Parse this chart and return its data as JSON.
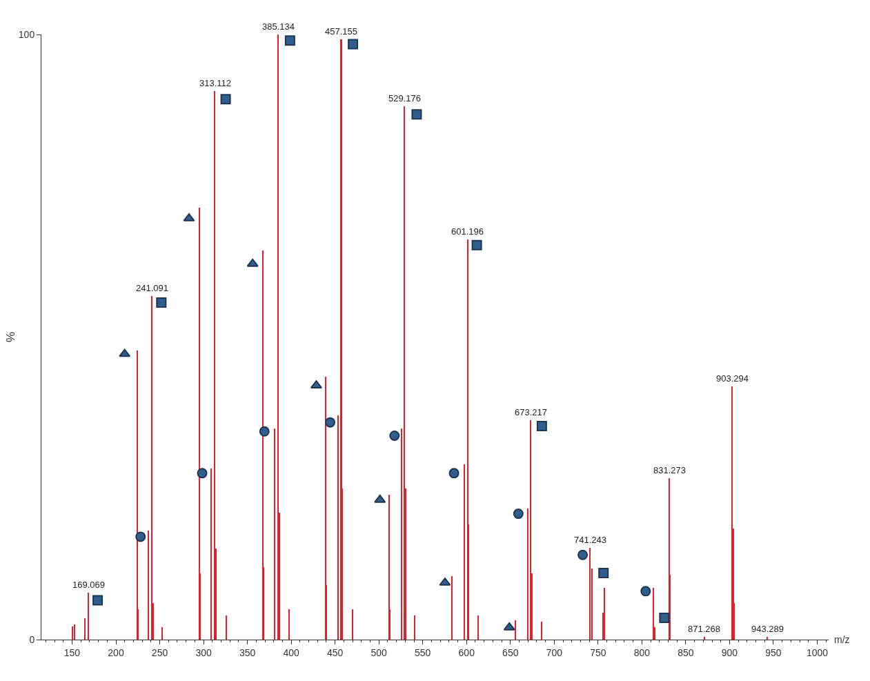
{
  "chart_data": {
    "type": "bar",
    "xlabel": "m/z",
    "ylabel": "%",
    "x": [
      150.5,
      153,
      165,
      169.069,
      224.5,
      225.5,
      237,
      241.091,
      242.5,
      253,
      295.5,
      296.5,
      308.5,
      313.112,
      314.5,
      326,
      367.5,
      368.5,
      381.5,
      385.134,
      386.5,
      398,
      439.5,
      440.5,
      453.5,
      457.155,
      458.5,
      470,
      511.5,
      512.5,
      526,
      529.176,
      530.5,
      541,
      583.5,
      597.5,
      601.196,
      602.5,
      613,
      655.5,
      670,
      673.217,
      674.5,
      686,
      741.243,
      743,
      755.5,
      757.5,
      813.5,
      815,
      831.273,
      832.5,
      871.268,
      903.294,
      904.5,
      905.5,
      943.289
    ],
    "series": [
      {
        "color": "#e0202a",
        "values": [
          2.2,
          2.5,
          3.5,
          7.8,
          47.8,
          5,
          18,
          56.8,
          6,
          2,
          71.4,
          11,
          28.3,
          90.6,
          15,
          4,
          64.3,
          12,
          34.9,
          100,
          21,
          5,
          43.5,
          9,
          37.1,
          99.2,
          25,
          5,
          24,
          5,
          34.9,
          88.1,
          25,
          4,
          10.5,
          29,
          66.1,
          19,
          4,
          3.2,
          21.7,
          36.3,
          11,
          3,
          15.2,
          11.8,
          4.5,
          8.6,
          8.6,
          2,
          26.7,
          10.7,
          0.5,
          41.8,
          18.4,
          6,
          0.5
        ]
      },
      {
        "type": "scatter",
        "marker": "triangle",
        "color": "#2f5f8f",
        "x": [
          210,
          283.4,
          356,
          428.6,
          501.2,
          575.4,
          648.8
        ],
        "values": [
          47.2,
          69.6,
          62.1,
          42,
          23.1,
          9.4,
          2.0
        ]
      },
      {
        "type": "scatter",
        "marker": "circle",
        "color": "#2f5f8f",
        "x": [
          228.1,
          298.4,
          369.4,
          444.4,
          517.8,
          585.7,
          659.1,
          732.5,
          804.3
        ],
        "values": [
          17.0,
          27.5,
          34.4,
          35.9,
          33.7,
          27.5,
          20.8,
          14.0,
          8.0
        ]
      },
      {
        "type": "scatter",
        "marker": "square",
        "color": "#2f5f8f",
        "x": [
          179.2,
          251.8,
          325.2,
          398.6,
          470.4,
          543.1,
          611.7,
          685.9,
          756.2,
          825.6
        ],
        "values": [
          6.5,
          55.7,
          89.3,
          99.0,
          98.4,
          86.8,
          65.2,
          35.3,
          11.0,
          3.6
        ]
      }
    ],
    "annotations": [
      {
        "text": "169.069",
        "x": 169.069,
        "y": 7.8
      },
      {
        "text": "241.091",
        "x": 241.091,
        "y": 56.8
      },
      {
        "text": "313.112",
        "x": 313.112,
        "y": 90.6
      },
      {
        "text": "385.134",
        "x": 385.134,
        "y": 100
      },
      {
        "text": "457.155",
        "x": 457.155,
        "y": 99.2
      },
      {
        "text": "529.176",
        "x": 529.176,
        "y": 88.1
      },
      {
        "text": "601.196",
        "x": 601.196,
        "y": 66.1
      },
      {
        "text": "673.217",
        "x": 673.217,
        "y": 36.3
      },
      {
        "text": "741.243",
        "x": 741.243,
        "y": 15.2
      },
      {
        "text": "831.273",
        "x": 831.273,
        "y": 26.7
      },
      {
        "text": "871.268",
        "x": 871.268,
        "y": 0.5
      },
      {
        "text": "903.294",
        "x": 903.294,
        "y": 41.8
      },
      {
        "text": "943.289",
        "x": 943.289,
        "y": 0.5
      }
    ],
    "xlim": [
      115,
      1013
    ],
    "ylim": [
      0,
      100
    ],
    "yticks": [
      0,
      100
    ],
    "xticks": [
      150,
      200,
      250,
      300,
      350,
      400,
      450,
      500,
      550,
      600,
      650,
      700,
      750,
      800,
      850,
      900,
      950,
      1000
    ]
  }
}
